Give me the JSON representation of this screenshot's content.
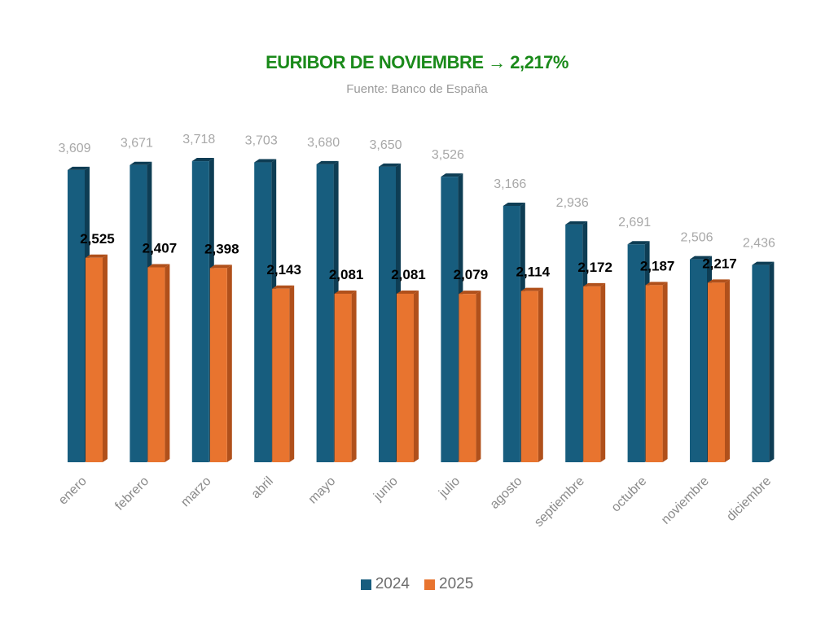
{
  "chart_data": {
    "type": "bar",
    "title": "EURIBOR DE NOVIEMBRE → 2,217%",
    "subtitle": "Fuente: Banco de España",
    "xlabel": "",
    "ylabel": "",
    "ylim": [
      0,
      4
    ],
    "grid": false,
    "legend_position": "bottom",
    "categories": [
      "enero",
      "febrero",
      "marzo",
      "abril",
      "mayo",
      "junio",
      "julio",
      "agosto",
      "septiembre",
      "octubre",
      "noviembre",
      "diciembre"
    ],
    "series": [
      {
        "name": "2024",
        "color": "#175d7e",
        "side_color": "#0e3d54",
        "values": [
          3.609,
          3.671,
          3.718,
          3.703,
          3.68,
          3.65,
          3.526,
          3.166,
          2.936,
          2.691,
          2.506,
          2.436
        ],
        "labels": [
          "3,609",
          "3,671",
          "3,718",
          "3,703",
          "3,680",
          "3,650",
          "3,526",
          "3,166",
          "2,936",
          "2,691",
          "2,506",
          "2,436"
        ]
      },
      {
        "name": "2025",
        "color": "#e8742f",
        "side_color": "#b0501b",
        "values": [
          2.525,
          2.407,
          2.398,
          2.143,
          2.081,
          2.081,
          2.079,
          2.114,
          2.172,
          2.187,
          2.217,
          null
        ],
        "labels": [
          "2,525",
          "2,407",
          "2,398",
          "2,143",
          "2,081",
          "2,081",
          "2,079",
          "2,114",
          "2,172",
          "2,187",
          "2,217",
          null
        ]
      }
    ]
  }
}
